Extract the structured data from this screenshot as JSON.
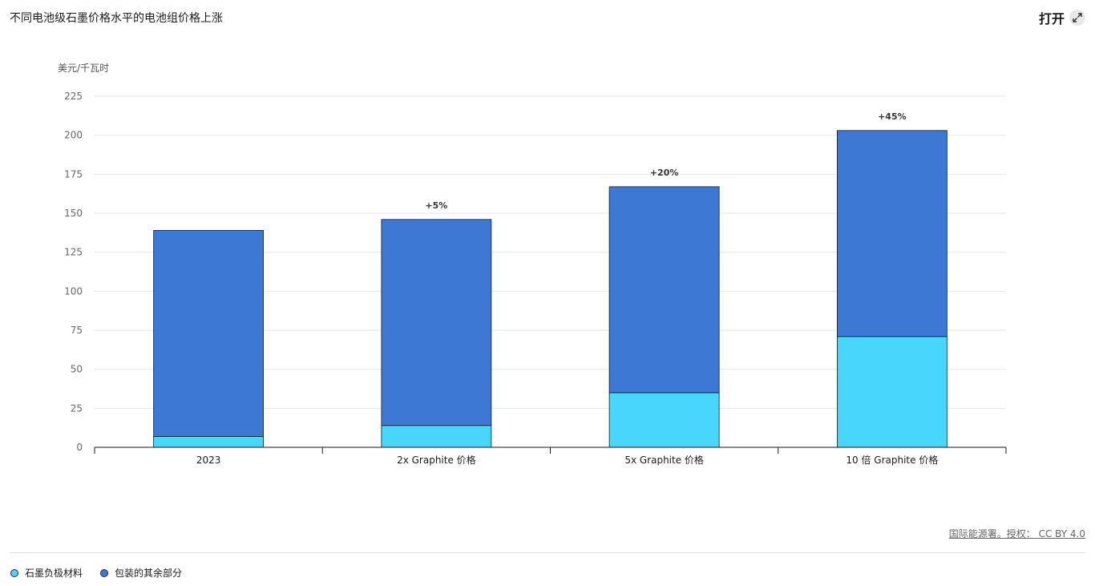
{
  "header": {
    "title": "不同电池级石墨价格水平的电池组价格上涨",
    "open_label": "打开"
  },
  "footer": {
    "source": "国际能源署。授权：",
    "license": "CC BY 4.0"
  },
  "colors": {
    "graphite": "#48d6fd",
    "rest": "#3d79d4"
  },
  "chart_data": {
    "type": "bar",
    "stacked": true,
    "title": "不同电池级石墨价格水平的电池组价格上涨",
    "ylabel": "美元/千瓦时",
    "xlabel": "",
    "ylim": [
      0,
      225
    ],
    "yticks": [
      0,
      25,
      50,
      75,
      100,
      125,
      150,
      175,
      200,
      225
    ],
    "grid": true,
    "legend_position": "bottom-left",
    "categories": [
      "2023",
      "2x Graphite 价格",
      "5x Graphite 价格",
      "10 倍 Graphite 价格"
    ],
    "series": [
      {
        "name": "石墨负极材料",
        "values": [
          7,
          14,
          35,
          71
        ]
      },
      {
        "name": "包装的其余部分",
        "values": [
          132,
          132,
          132,
          132
        ]
      }
    ],
    "annotations": [
      "",
      "+5%",
      "+20%",
      "+45%"
    ]
  }
}
